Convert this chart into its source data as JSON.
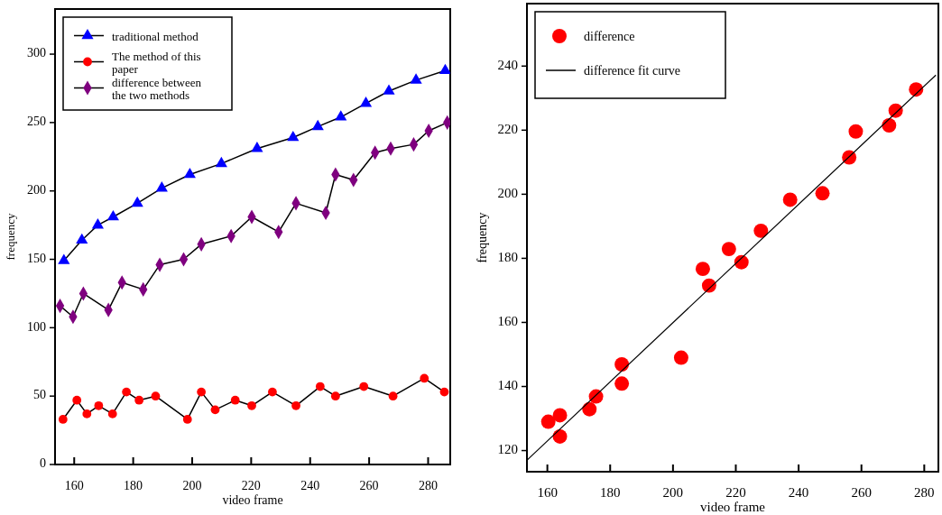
{
  "chart_data": [
    {
      "type": "line",
      "xlabel": "video frame",
      "ylabel": "frequency",
      "xlim": [
        153.5,
        287.5
      ],
      "ylim": [
        0,
        333
      ],
      "xticks": [
        160,
        180,
        200,
        220,
        240,
        260,
        280
      ],
      "yticks": [
        0,
        50,
        100,
        150,
        200,
        250,
        300
      ],
      "legend": "top left",
      "series": [
        {
          "name": "traditional method",
          "color": "#0000ff",
          "marker": "triangle",
          "x": [
            156.5,
            162.6,
            168,
            173.2,
            181.4,
            189.7,
            199.2,
            209.9,
            222,
            234.2,
            242.6,
            250.4,
            258.9,
            266.7,
            275.9,
            285.8
          ],
          "values": [
            149,
            164,
            175,
            181,
            191,
            202,
            212,
            220,
            231,
            239,
            247,
            254,
            264,
            273,
            281,
            288
          ]
        },
        {
          "name": "The method of this paper",
          "color": "#ff0000",
          "marker": "circle",
          "x": [
            156.2,
            160.9,
            164.3,
            168.3,
            173,
            177.7,
            182,
            187.6,
            198.4,
            203.1,
            207.8,
            214.6,
            220.2,
            227.2,
            235.2,
            243.4,
            248.6,
            258.2,
            268.1,
            278.7,
            285.5
          ],
          "values": [
            33,
            47,
            37,
            43,
            37,
            53,
            47,
            50,
            33,
            53,
            40,
            47,
            43,
            53,
            43,
            57,
            50,
            57,
            50,
            63,
            53
          ]
        },
        {
          "name": "difference between the two methods",
          "color": "#7f007f",
          "marker": "diamond",
          "x": [
            155.2,
            159.6,
            163.1,
            171.6,
            176.2,
            183.4,
            189,
            197.1,
            203.1,
            213.2,
            220.2,
            229.3,
            235.2,
            245.3,
            248.6,
            254.7,
            262,
            267.3,
            275.1,
            280.2,
            286.5
          ],
          "values": [
            116,
            108,
            125,
            113,
            133,
            128,
            146,
            150,
            161,
            167,
            181,
            170,
            191,
            184,
            212,
            208,
            228,
            231,
            234,
            244,
            250
          ]
        }
      ]
    },
    {
      "type": "scatter",
      "xlabel": "video frame",
      "ylabel": "frequency",
      "xlim": [
        153.5,
        284.5
      ],
      "ylim": [
        113.4,
        259.5
      ],
      "xticks": [
        160,
        180,
        200,
        220,
        240,
        260,
        280
      ],
      "yticks": [
        120,
        140,
        160,
        180,
        200,
        220,
        240
      ],
      "legend": "top left",
      "series": [
        {
          "name": "difference",
          "type": "scatter",
          "color": "#ff0000",
          "marker": "circle",
          "x": [
            160.3,
            164,
            164,
            173.4,
            175.5,
            183.7,
            183.7,
            202.6,
            209.5,
            211.5,
            217.8,
            221.8,
            228,
            237.3,
            247.6,
            256.1,
            258.2,
            268.8,
            270.9,
            277.4
          ],
          "values": [
            129,
            131,
            124.4,
            132.9,
            136.9,
            146.9,
            140.9,
            149,
            176.7,
            171.5,
            182.9,
            178.8,
            188.6,
            198.3,
            200.3,
            211.5,
            219.6,
            221.5,
            226.1,
            232.7
          ]
        },
        {
          "name": "difference fit curve",
          "type": "line",
          "color": "#000000",
          "marker": "none",
          "x": [
            153.5,
            283.7
          ],
          "values": [
            117,
            237.2
          ]
        }
      ]
    }
  ]
}
